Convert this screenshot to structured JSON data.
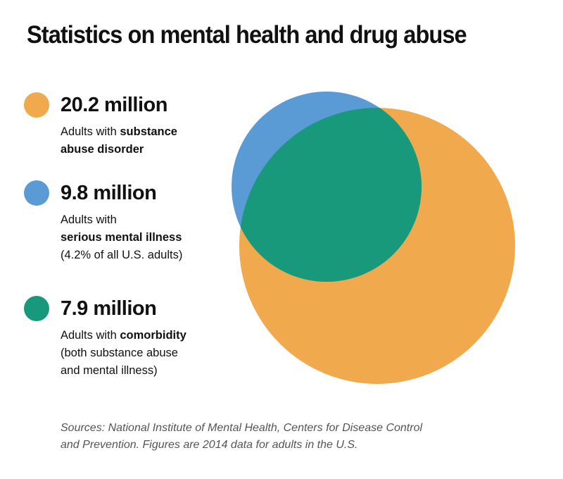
{
  "title": "Statistics on mental health and drug abuse",
  "colors": {
    "substance": "#F0A94C",
    "mental": "#5A9BD5",
    "comorbidity": "#19997C"
  },
  "legend": [
    {
      "value": "20.2 million",
      "color": "#F0A94C",
      "lines": [
        {
          "plain": "Adults with ",
          "bold": "substance"
        },
        {
          "plain": "",
          "bold": "abuse disorder"
        }
      ]
    },
    {
      "value": "9.8 million",
      "color": "#5A9BD5",
      "lines": [
        {
          "plain": "Adults with",
          "bold": ""
        },
        {
          "plain": "",
          "bold": "serious mental illness"
        },
        {
          "plain": "(4.2% of all U.S. adults)",
          "bold": ""
        }
      ]
    },
    {
      "value": "7.9 million",
      "color": "#19997C",
      "lines": [
        {
          "plain": "Adults with ",
          "bold": "comorbidity"
        },
        {
          "plain": "(both substance abuse",
          "bold": ""
        },
        {
          "plain": "and mental illness)",
          "bold": ""
        }
      ]
    }
  ],
  "sources": [
    "Sources: National Institute of Mental Health, Centers for Disease Control",
    "and Prevention. Figures are 2014 data for adults in the U.S."
  ]
}
